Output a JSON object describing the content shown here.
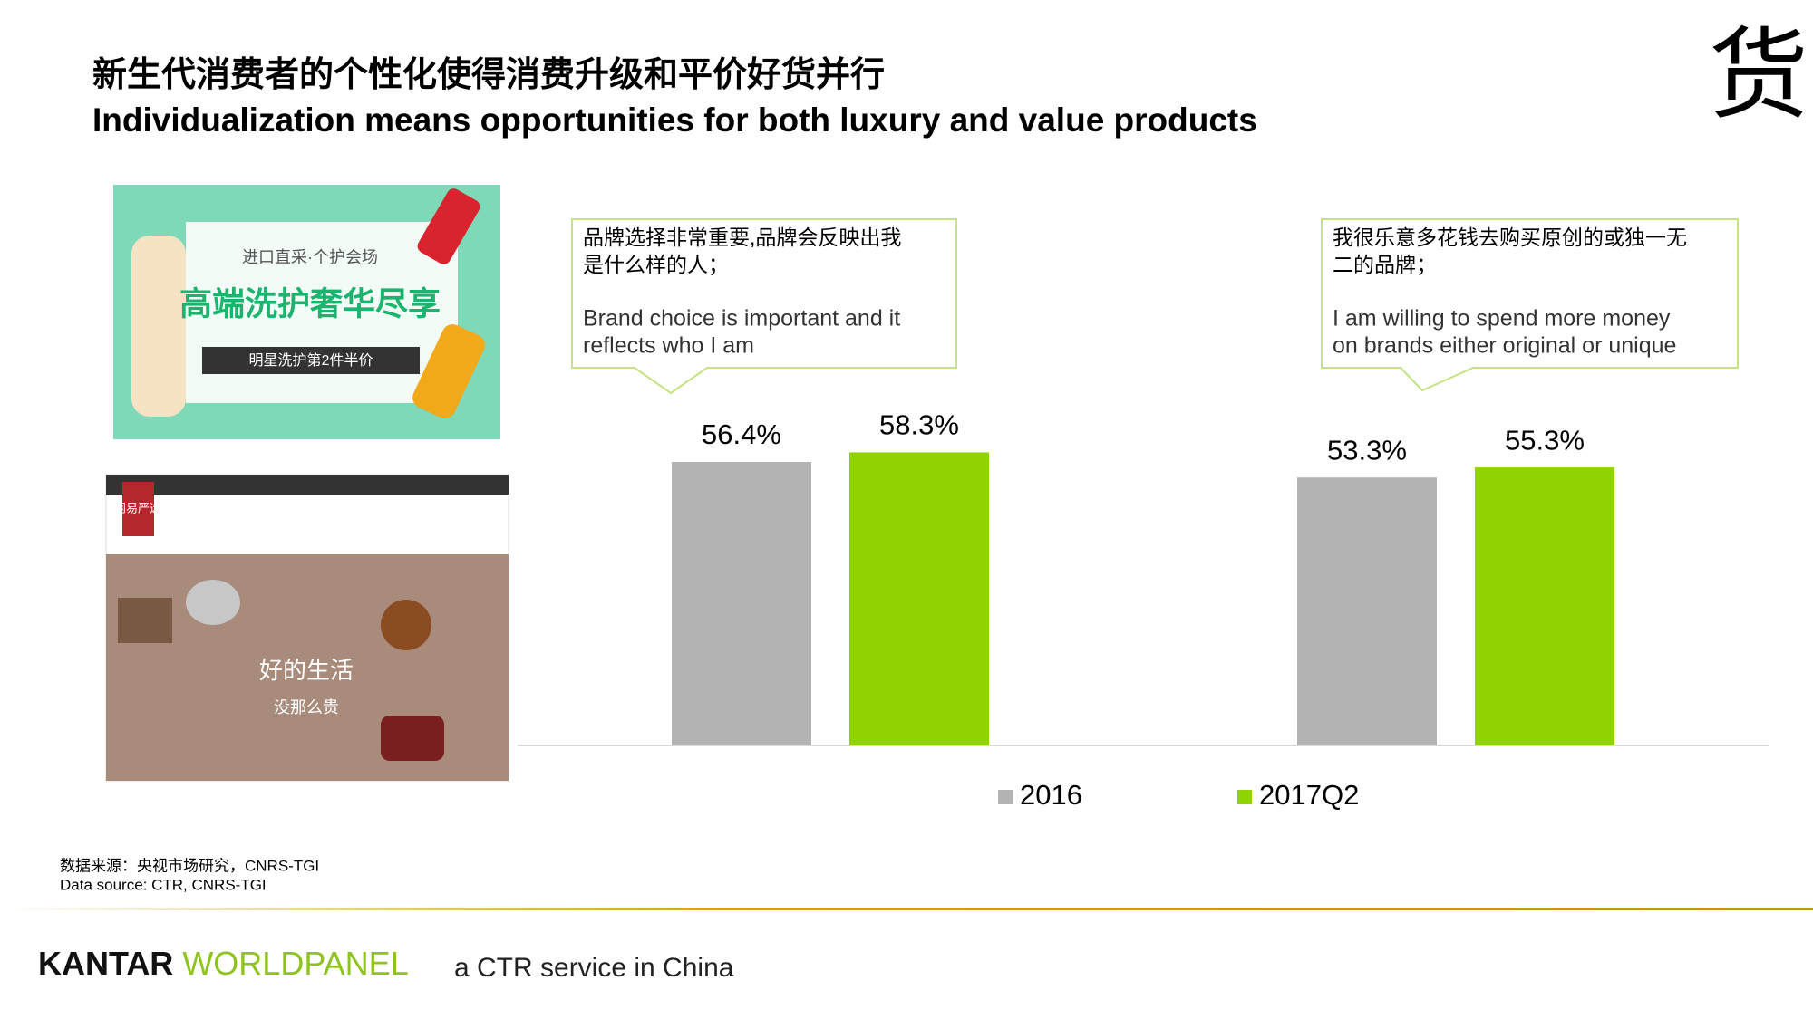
{
  "header": {
    "title_cn": "新生代消费者的个性化使得消费升级和平价好货并行",
    "title_en": "Individualization means opportunities for both luxury and value products",
    "corner_glyph": "货"
  },
  "images": {
    "top": [
      "进口直采·个护会场",
      "高端洗护奢华尽享",
      "明星洗护第2件半价"
    ],
    "bottom": [
      "网易严选",
      "好的生活",
      "没那么贵"
    ]
  },
  "chart_data": {
    "type": "bar",
    "categories": [
      null,
      null
    ],
    "series": [
      {
        "name": "2016",
        "color": "#b3b3b3",
        "values": [
          56.4,
          53.3
        ],
        "value_labels": [
          "56.4%",
          "53.3%"
        ]
      },
      {
        "name": "2017Q2",
        "color": "#8fd400",
        "values": [
          58.3,
          55.3
        ],
        "value_labels": [
          "58.3%",
          "55.3%"
        ]
      }
    ],
    "annotations": [
      {
        "cn": [
          "品牌选择非常重要,品牌会反映出我",
          "是什么样的人；"
        ],
        "en": [
          "Brand choice is important and it",
          "reflects who I am"
        ]
      },
      {
        "cn": [
          "我很乐意多花钱去购买原创的或独一无",
          "二的品牌；"
        ],
        "en": [
          "I am willing to spend more money",
          "on brands either original or unique"
        ]
      }
    ],
    "legend": "bottom"
  },
  "footer": {
    "source_cn": "数据来源：央视市场研究，CNRS-TGI",
    "source_en": "Data source: CTR, CNRS-TGI",
    "brand_a": "KANTAR",
    "brand_b": "WORLDPANEL",
    "tagline": "a CTR service in China"
  }
}
